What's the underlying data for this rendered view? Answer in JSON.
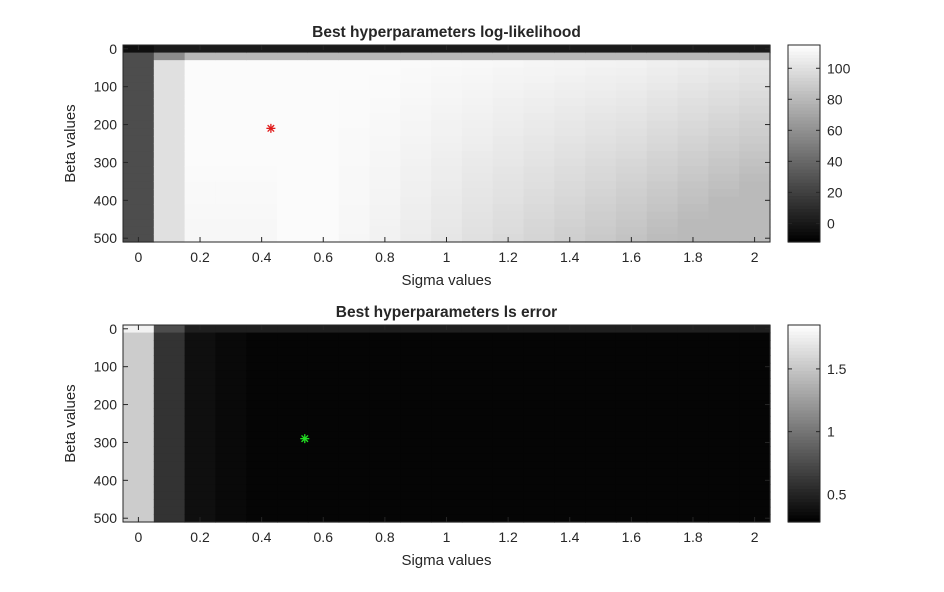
{
  "chart_data": [
    {
      "type": "heatmap",
      "title": "Best hyperparameters log-likelihood",
      "xlabel": "Sigma values",
      "ylabel": "Beta values",
      "xlim": [
        -0.05,
        2.05
      ],
      "ylim": [
        -10,
        510
      ],
      "y_reversed": true,
      "xticks": [
        0,
        0.2,
        0.4,
        0.6,
        0.8,
        1,
        1.2,
        1.4,
        1.6,
        1.8,
        2
      ],
      "xtick_labels": [
        "0",
        "0.2",
        "0.4",
        "0.6",
        "0.8",
        "1",
        "1.2",
        "1.4",
        "1.6",
        "1.8",
        "2"
      ],
      "yticks": [
        0,
        100,
        200,
        300,
        400,
        500
      ],
      "ytick_labels": [
        "0",
        "100",
        "200",
        "300",
        "400",
        "500"
      ],
      "colormap": "gray",
      "clim": [
        -12,
        115
      ],
      "colorbar_ticks": [
        0,
        20,
        40,
        60,
        80,
        100
      ],
      "colorbar_tick_labels": [
        "0",
        "20",
        "40",
        "60",
        "80",
        "100"
      ],
      "marker": {
        "x": 0.43,
        "y": 210,
        "symbol": "*",
        "color": "#e01b1b"
      }
    },
    {
      "type": "heatmap",
      "title": "Best hyperparameters ls error",
      "xlabel": "Sigma values",
      "ylabel": "Beta values",
      "xlim": [
        -0.05,
        2.05
      ],
      "ylim": [
        -10,
        510
      ],
      "y_reversed": true,
      "xticks": [
        0,
        0.2,
        0.4,
        0.6,
        0.8,
        1,
        1.2,
        1.4,
        1.6,
        1.8,
        2
      ],
      "xtick_labels": [
        "0",
        "0.2",
        "0.4",
        "0.6",
        "0.8",
        "1",
        "1.2",
        "1.4",
        "1.6",
        "1.8",
        "2"
      ],
      "yticks": [
        0,
        100,
        200,
        300,
        400,
        500
      ],
      "ytick_labels": [
        "0",
        "100",
        "200",
        "300",
        "400",
        "500"
      ],
      "colormap": "gray",
      "clim": [
        0.28,
        1.85
      ],
      "colorbar_ticks": [
        0.5,
        1,
        1.5
      ],
      "colorbar_tick_labels": [
        "0.5",
        "1",
        "1.5"
      ],
      "marker": {
        "x": 0.54,
        "y": 290,
        "symbol": "*",
        "color": "#22dd22"
      }
    }
  ]
}
